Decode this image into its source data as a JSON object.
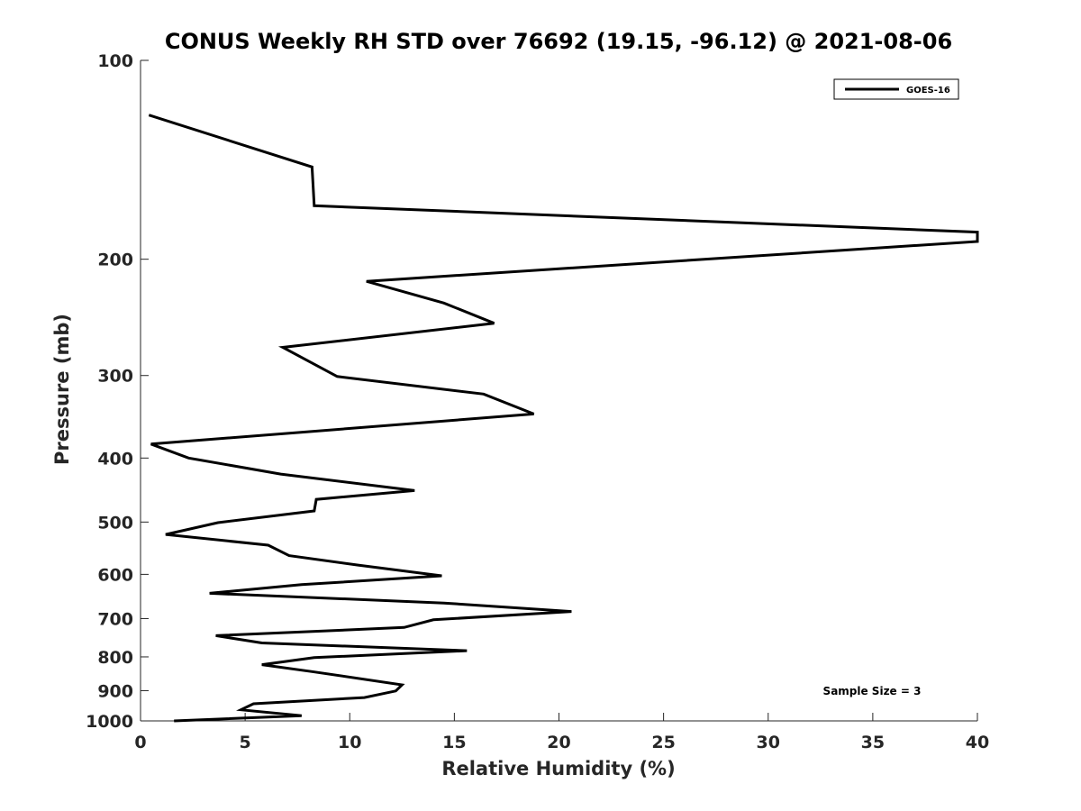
{
  "chart_data": {
    "type": "line",
    "title": "CONUS Weekly RH STD over 76692 (19.15, -96.12) @ 2021-08-06",
    "xlabel": "Relative Humidity (%)",
    "ylabel": "Pressure (mb)",
    "xlim": [
      0,
      40
    ],
    "ylim": [
      100,
      1000
    ],
    "y_scale": "log",
    "y_reversed": true,
    "grid": false,
    "legend_position": "top-right",
    "x_ticks": [
      0,
      5,
      10,
      15,
      20,
      25,
      30,
      35,
      40
    ],
    "x_tick_labels": [
      "0",
      "5",
      "10",
      "15",
      "20",
      "25",
      "30",
      "35",
      "40"
    ],
    "y_ticks": [
      100,
      200,
      300,
      400,
      500,
      600,
      700,
      800,
      900,
      1000
    ],
    "y_tick_labels": [
      "100",
      "200",
      "300",
      "400",
      "500",
      "600",
      "700",
      "800",
      "900",
      "1000"
    ],
    "series": [
      {
        "name": "GOES-16",
        "color": "#000000",
        "points": [
          [
            0.4,
            121
          ],
          [
            8.2,
            145
          ],
          [
            8.3,
            166
          ],
          [
            40.0,
            182
          ],
          [
            40.0,
            188
          ],
          [
            10.8,
            216
          ],
          [
            14.5,
            233
          ],
          [
            16.9,
            250
          ],
          [
            6.8,
            272
          ],
          [
            9.4,
            301
          ],
          [
            16.4,
            320
          ],
          [
            18.8,
            343
          ],
          [
            0.5,
            381
          ],
          [
            2.3,
            400
          ],
          [
            6.7,
            423
          ],
          [
            13.1,
            448
          ],
          [
            8.4,
            462
          ],
          [
            8.3,
            481
          ],
          [
            3.7,
            501
          ],
          [
            1.2,
            522
          ],
          [
            6.1,
            542
          ],
          [
            7.1,
            562
          ],
          [
            10.4,
            581
          ],
          [
            14.4,
            603
          ],
          [
            7.7,
            622
          ],
          [
            3.3,
            641
          ],
          [
            14.5,
            663
          ],
          [
            20.6,
            683
          ],
          [
            14.0,
            703
          ],
          [
            12.6,
            722
          ],
          [
            3.6,
            743
          ],
          [
            5.8,
            762
          ],
          [
            15.6,
            783
          ],
          [
            8.3,
            802
          ],
          [
            5.8,
            822
          ],
          [
            8.2,
            842
          ],
          [
            12.5,
            882
          ],
          [
            12.2,
            901
          ],
          [
            10.7,
            922
          ],
          [
            5.4,
            942
          ],
          [
            4.8,
            962
          ],
          [
            7.7,
            982
          ],
          [
            1.6,
            1000
          ]
        ]
      }
    ],
    "annotations": [
      "Sample Size = 3"
    ]
  }
}
